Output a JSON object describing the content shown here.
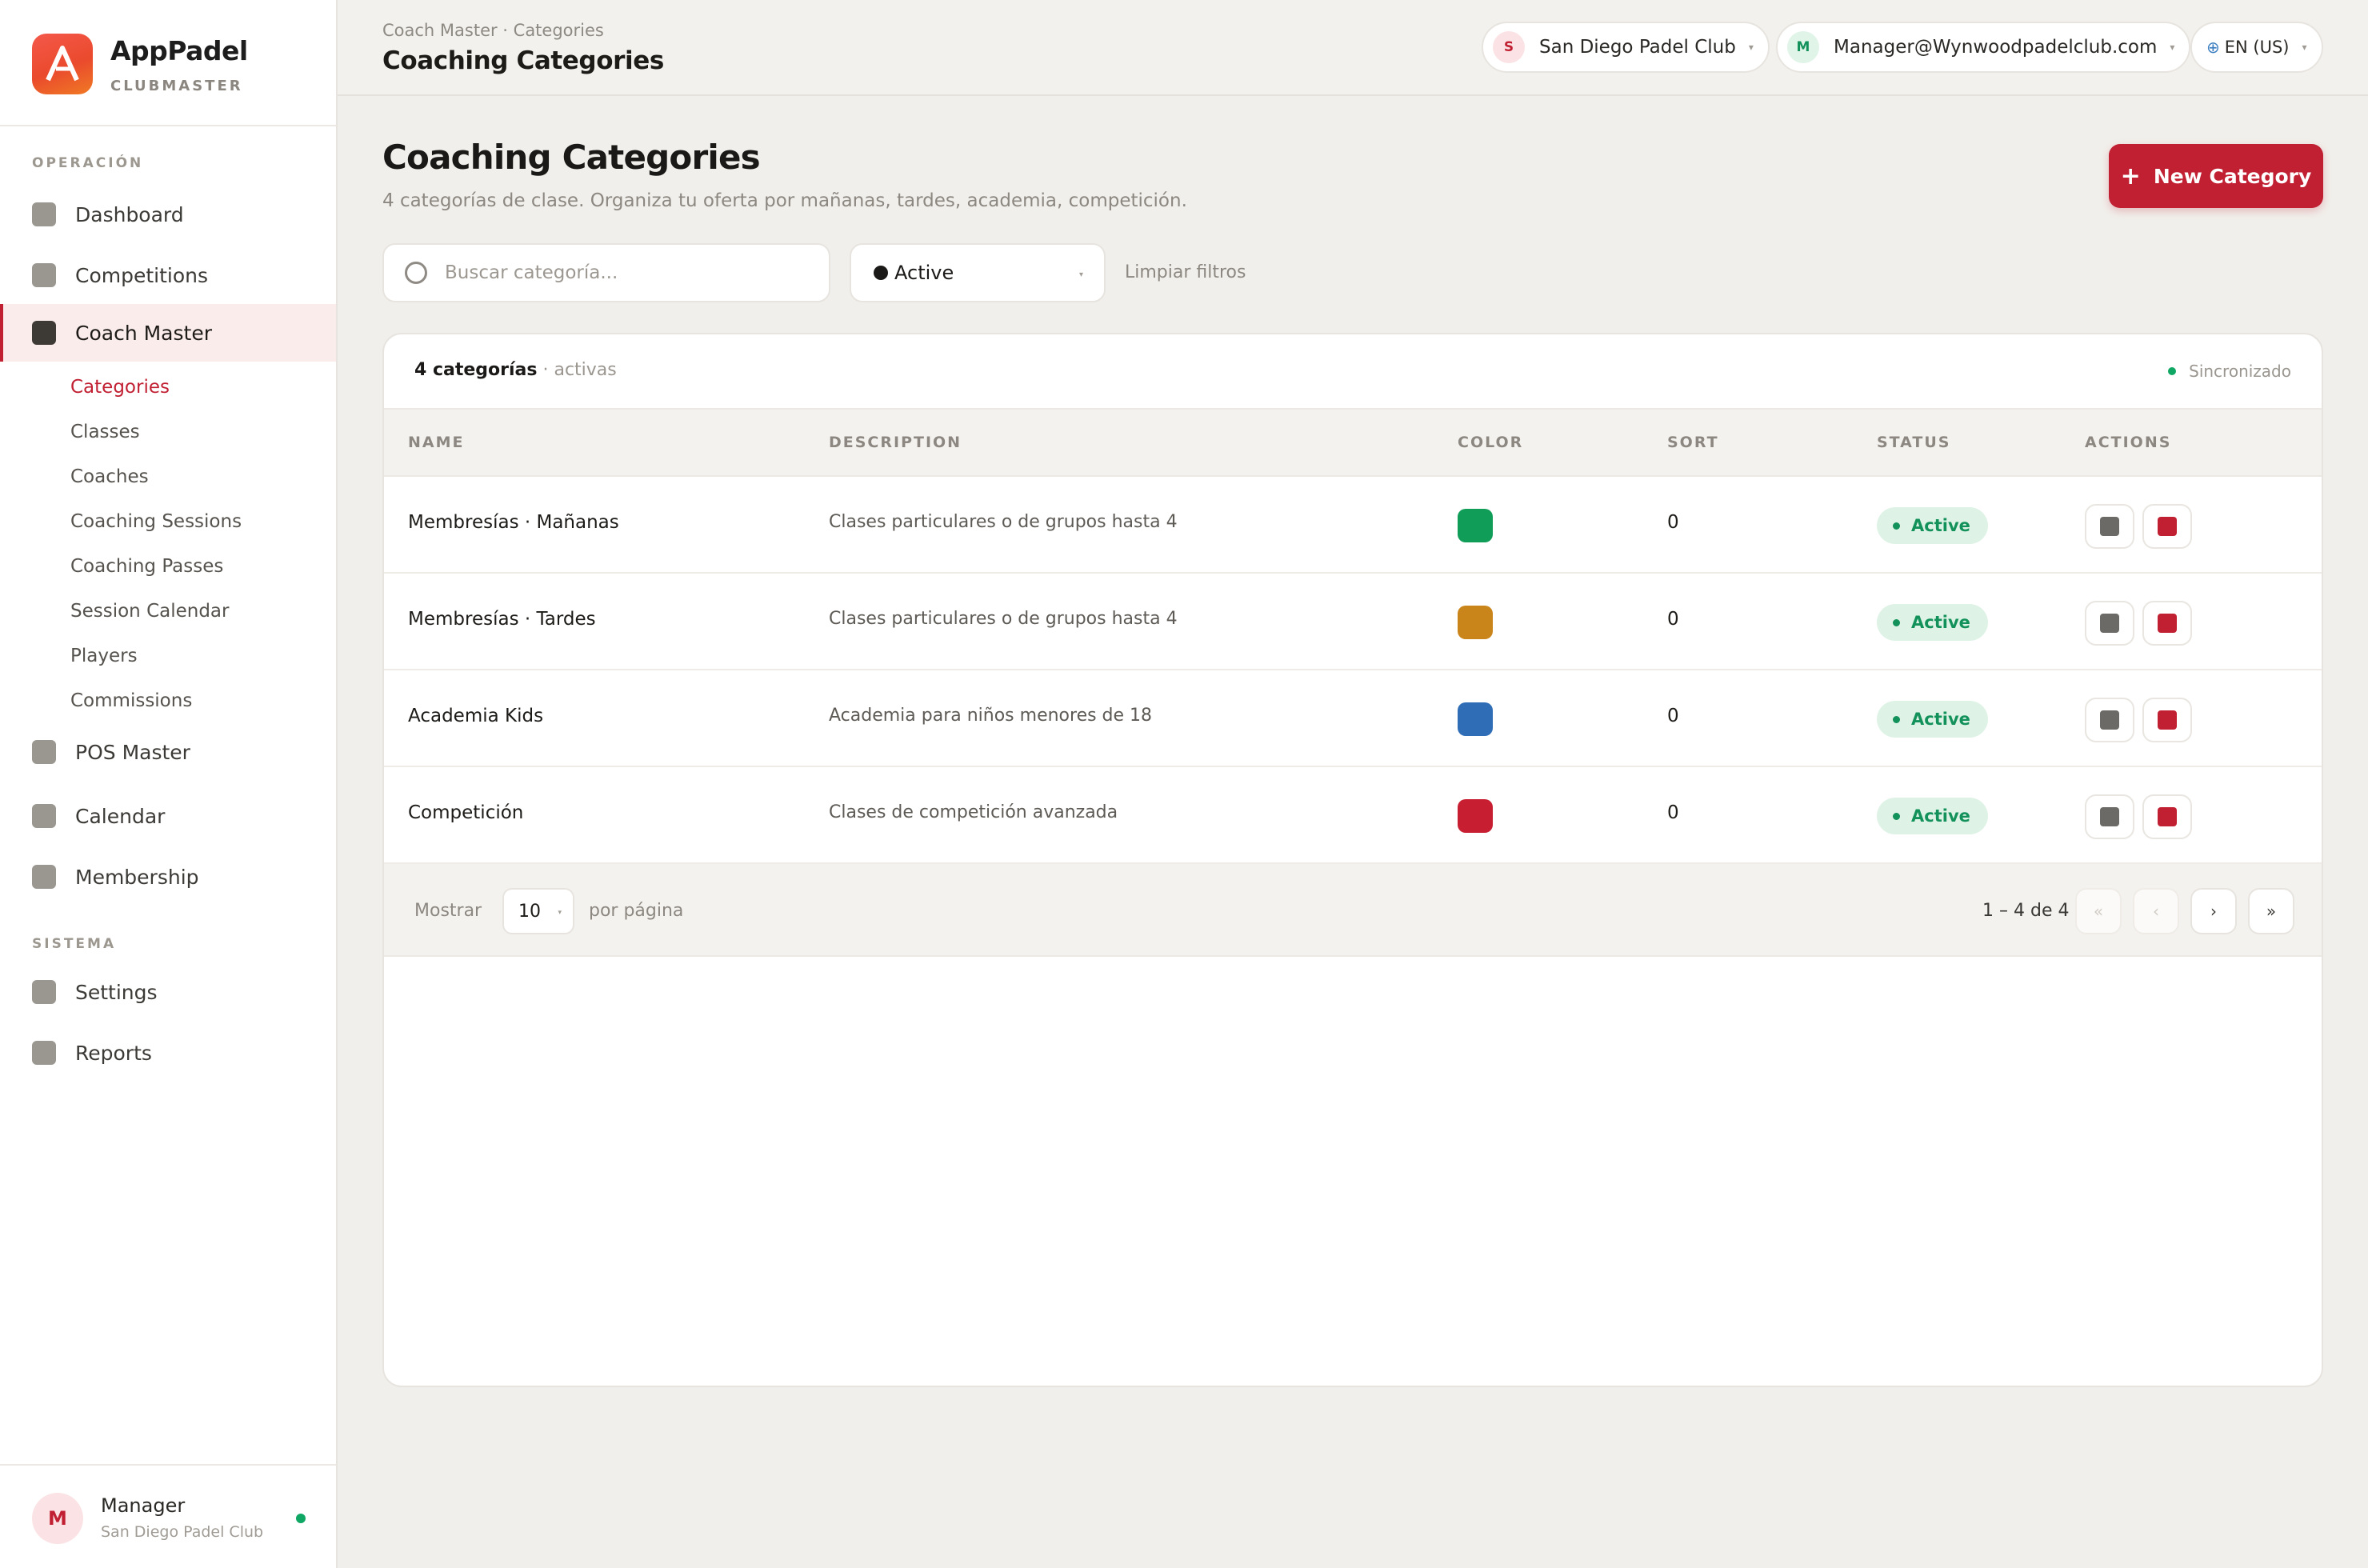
{
  "brand": {
    "name": "AppPadel",
    "subtitle": "CLUBMASTER"
  },
  "sidebar": {
    "section_operacion": "OPERACIÓN",
    "section_sistema": "SISTEMA",
    "items": [
      {
        "label": "Dashboard",
        "icon": "dashboard-icon"
      },
      {
        "label": "Competitions",
        "icon": "trophy-icon"
      },
      {
        "label": "Coach Master",
        "icon": "whistle-icon",
        "active": true
      },
      {
        "label": "POS Master",
        "icon": "register-icon"
      },
      {
        "label": "Calendar",
        "icon": "calendar-icon"
      },
      {
        "label": "Membership",
        "icon": "id-card-icon"
      }
    ],
    "sub_items": [
      "Categories",
      "Classes",
      "Coaches",
      "Coaching Sessions",
      "Coaching Passes",
      "Session Calendar",
      "Players",
      "Commissions"
    ],
    "system_items": [
      {
        "label": "Settings",
        "icon": "gear-icon"
      },
      {
        "label": "Reports",
        "icon": "chart-icon"
      }
    ],
    "footer": {
      "avatar": "M",
      "name": "Manager",
      "club": "San Diego Padel Club"
    }
  },
  "topbar": {
    "breadcrumb": "Coach Master · Categories",
    "title": "Coaching Categories",
    "club": {
      "initial": "S",
      "label": "San Diego Padel Club"
    },
    "user": {
      "initial": "M",
      "label": "Manager@Wynwoodpadelclub.com"
    },
    "language": "EN (US)"
  },
  "page": {
    "title": "Coaching Categories",
    "subtitle": "4 categorías de clase. Organiza tu oferta por mañanas, tardes, academia, competición.",
    "new_button": "New Category"
  },
  "filters": {
    "search_placeholder": "Buscar categoría...",
    "status_value": "Active",
    "clear": "Limpiar filtros"
  },
  "table": {
    "count_bold": "4 categorías",
    "count_muted": "· activas",
    "sync": "Sincronizado",
    "headers": [
      "NAME",
      "DESCRIPTION",
      "COLOR",
      "SORT",
      "STATUS",
      "ACTIONS"
    ],
    "rows": [
      {
        "name": "Membresías · Mañanas",
        "description": "Clases particulares o de grupos hasta 4",
        "color": "#0f9d58",
        "sort": "0",
        "status": "Active"
      },
      {
        "name": "Membresías · Tardes",
        "description": "Clases particulares o de grupos hasta 4",
        "color": "#c98519",
        "sort": "0",
        "status": "Active"
      },
      {
        "name": "Academia Kids",
        "description": "Academia para niños menores de 18",
        "color": "#2f6db7",
        "sort": "0",
        "status": "Active"
      },
      {
        "name": "Competición",
        "description": "Clases de competición avanzada",
        "color": "#c81e32",
        "sort": "0",
        "status": "Active"
      }
    ]
  },
  "pagination": {
    "show_label": "Mostrar",
    "per_page_value": "10",
    "per_page_label": "por página",
    "range": "1 – 4 de 4",
    "first": "«",
    "prev": "‹",
    "next": "›",
    "last": "»"
  },
  "colors": {
    "accent": "#c11f32",
    "success": "#13915a",
    "background": "#f1efeb"
  }
}
